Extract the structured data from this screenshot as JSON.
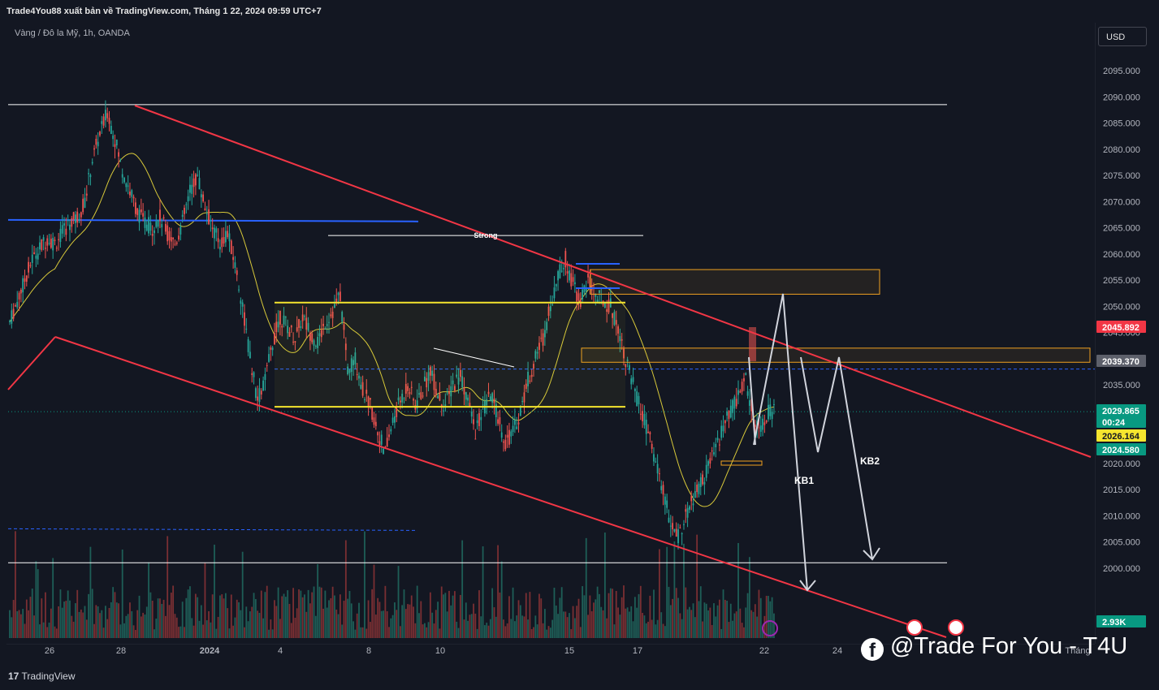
{
  "header": {
    "publish_line": "Trade4You88 xuất bản về TradingView.com, Tháng 1 22, 2024 09:59 UTC+7",
    "symbol_line": "Vàng / Đô la Mỹ, 1h, OANDA",
    "currency_button": "USD"
  },
  "footer": {
    "brand": "TradingView",
    "watermark": "@Trade For You - T4U"
  },
  "colors": {
    "background": "#131722",
    "up_candle": "#26a69a",
    "down_candle": "#ef5350",
    "channel_line": "#f23645",
    "ma_line": "#d8c93a",
    "zone": "#f0a020",
    "range_box": "#f5e52e",
    "resistance_blue": "#2962ff",
    "projection": "#d1d4dc"
  },
  "chart_data": {
    "type": "candlestick",
    "x_ticks": [
      "26",
      "28",
      "2024",
      "4",
      "8",
      "10",
      "15",
      "17",
      "22",
      "24",
      "Tháng"
    ],
    "y_ticks": [
      2000,
      2005,
      2010,
      2015,
      2020,
      2025,
      2030,
      2035,
      2040,
      2045,
      2050,
      2055,
      2060,
      2065,
      2070,
      2075,
      2080,
      2085,
      2090,
      2095
    ],
    "y_unit": "USD",
    "price_labels": [
      {
        "value": "2045.892",
        "color": "#f23645"
      },
      {
        "value": "2039.370",
        "color": "#5d606b"
      },
      {
        "value": "2029.865",
        "color": "#089981"
      },
      {
        "value": "00:24",
        "color": "#089981"
      },
      {
        "value": "2026.164",
        "color": "#f5e52e"
      },
      {
        "value": "2024.580",
        "color": "#089981"
      },
      {
        "value": "2.93K",
        "color": "#089981"
      }
    ],
    "current_price": 2029.865,
    "annotations": {
      "strong_label": "Strong",
      "kb1": "KB1",
      "kb2": "KB2"
    },
    "levels": {
      "top_white": 2088.5,
      "bottom_white": 2001.0,
      "blue_resistance": 2066.5,
      "dashed_upper": 2038.0,
      "dashed_lower": 2007.5,
      "strong_line": 2063.5
    },
    "zones": [
      {
        "name": "supply-zone-upper",
        "low": 2052.3,
        "high": 2057.0
      },
      {
        "name": "supply-zone-lower",
        "low": 2039.3,
        "high": 2042.0
      }
    ],
    "range_box": {
      "high": 2050.7,
      "low": 2030.8
    },
    "close_series": [
      2047,
      2051,
      2055,
      2059,
      2061,
      2063,
      2062,
      2064,
      2066,
      2067,
      2070,
      2078,
      2083,
      2087,
      2082,
      2076,
      2072,
      2068,
      2066,
      2065,
      2067,
      2064,
      2062,
      2066,
      2072,
      2075,
      2069,
      2065,
      2062,
      2064,
      2058,
      2050,
      2040,
      2032,
      2036,
      2043,
      2048,
      2046,
      2044,
      2048,
      2045,
      2043,
      2047,
      2049,
      2052,
      2038,
      2040,
      2034,
      2031,
      2026,
      2022,
      2028,
      2032,
      2035,
      2031,
      2034,
      2038,
      2033,
      2031,
      2035,
      2037,
      2032,
      2026,
      2030,
      2033,
      2029,
      2024,
      2026,
      2030,
      2036,
      2040,
      2044,
      2050,
      2056,
      2059,
      2054,
      2051,
      2055,
      2052,
      2051,
      2050,
      2046,
      2040,
      2035,
      2030,
      2026,
      2020,
      2015,
      2008,
      2006,
      2010,
      2013,
      2016,
      2019,
      2023,
      2027,
      2030,
      2033,
      2036,
      2029,
      2027,
      2030
    ]
  }
}
